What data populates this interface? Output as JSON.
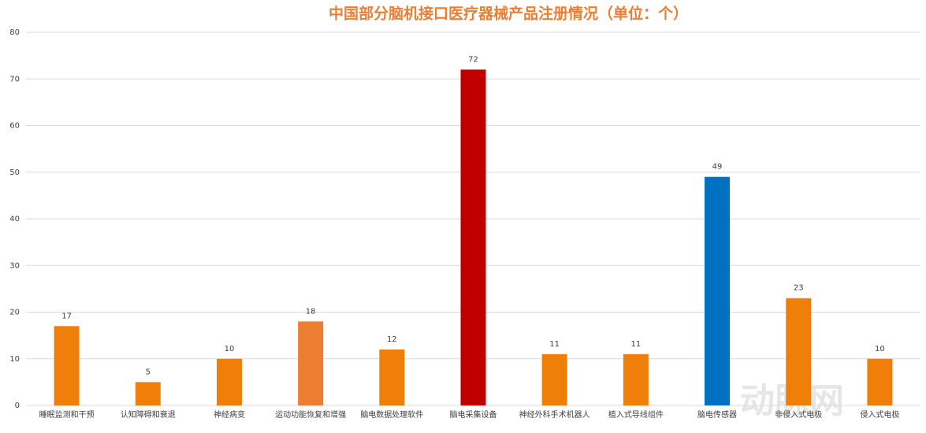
{
  "chart_data": {
    "type": "bar",
    "title": "中国部分脑机接口医疗器械产品注册情况（单位：个）",
    "categories": [
      "睡眠监测和干预",
      "认知障碍和衰退",
      "神经病变",
      "运动功能恢复和增强",
      "脑电数据处理软件",
      "脑电采集设备",
      "神经外科手术机器人",
      "植入式导线组件",
      "脑电传感器",
      "非侵入式电极",
      "侵入式电极"
    ],
    "values": [
      17,
      5,
      10,
      18,
      12,
      72,
      11,
      11,
      49,
      23,
      10
    ],
    "colors": [
      "#f07f09",
      "#f07f09",
      "#f07f09",
      "#ed7d31",
      "#f07f09",
      "#c00000",
      "#f07f09",
      "#f07f09",
      "#0070c0",
      "#f07f09",
      "#f07f09"
    ],
    "ylim": [
      0,
      80
    ],
    "yticks": [
      0,
      10,
      20,
      30,
      40,
      50,
      60,
      70,
      80
    ],
    "grid": true,
    "watermark": "动脉网"
  }
}
